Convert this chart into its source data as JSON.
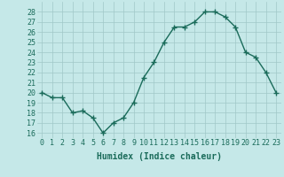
{
  "x": [
    0,
    1,
    2,
    3,
    4,
    5,
    6,
    7,
    8,
    9,
    10,
    11,
    12,
    13,
    14,
    15,
    16,
    17,
    18,
    19,
    20,
    21,
    22,
    23
  ],
  "y": [
    20,
    19.5,
    19.5,
    18,
    18.2,
    17.5,
    16,
    17,
    17.5,
    19,
    21.5,
    23,
    25,
    26.5,
    26.5,
    27,
    28,
    28,
    27.5,
    26.5,
    24,
    23.5,
    22,
    20
  ],
  "line_color": "#1a6b5a",
  "marker": "+",
  "marker_color": "#1a6b5a",
  "bg_color": "#c5e8e8",
  "grid_color": "#a0c8c8",
  "axis_label_color": "#1a6b5a",
  "tick_label_color": "#1a6b5a",
  "xlabel": "Humidex (Indice chaleur)",
  "ylim": [
    15.5,
    29
  ],
  "xlim": [
    -0.5,
    23.5
  ],
  "yticks": [
    16,
    17,
    18,
    19,
    20,
    21,
    22,
    23,
    24,
    25,
    26,
    27,
    28
  ],
  "xticks": [
    0,
    1,
    2,
    3,
    4,
    5,
    6,
    7,
    8,
    9,
    10,
    11,
    12,
    13,
    14,
    15,
    16,
    17,
    18,
    19,
    20,
    21,
    22,
    23
  ],
  "xtick_labels": [
    "0",
    "1",
    "2",
    "3",
    "4",
    "5",
    "6",
    "7",
    "8",
    "9",
    "10",
    "11",
    "12",
    "13",
    "14",
    "15",
    "16",
    "17",
    "18",
    "19",
    "20",
    "21",
    "22",
    "23"
  ],
  "ytick_labels": [
    "16",
    "17",
    "18",
    "19",
    "20",
    "21",
    "22",
    "23",
    "24",
    "25",
    "26",
    "27",
    "28"
  ],
  "linewidth": 1.0,
  "markersize": 4,
  "tick_fontsize": 6,
  "xlabel_fontsize": 7
}
